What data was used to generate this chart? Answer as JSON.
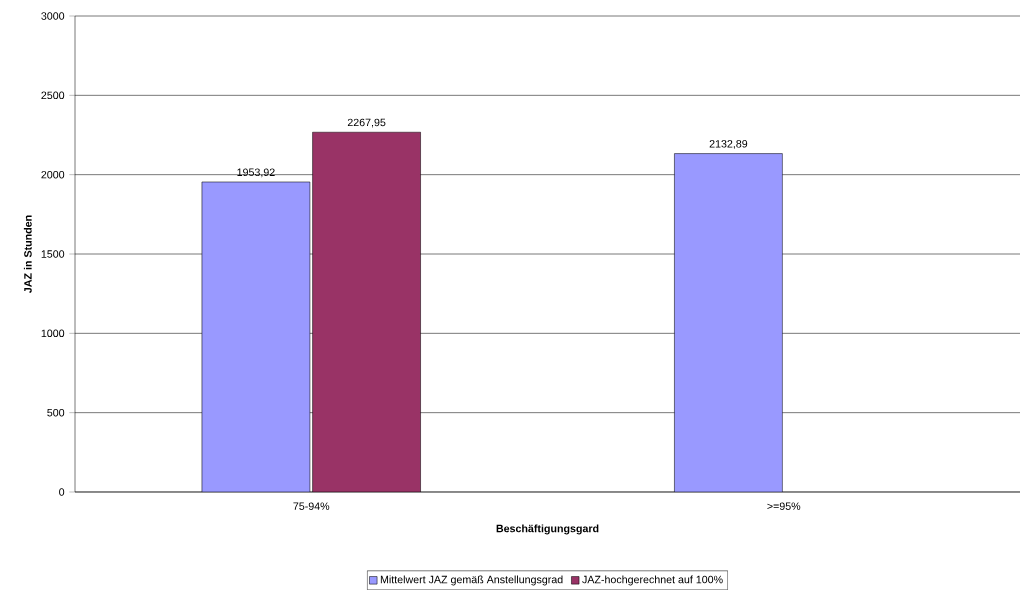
{
  "chart_data": {
    "type": "bar",
    "xlabel": "Beschäftigungsgard",
    "ylabel": "JAZ in Stunden",
    "categories": [
      "75-94%",
      ">=95%"
    ],
    "series": [
      {
        "name": "Mittelwert JAZ gemäß Anstellungsgrad",
        "color": "#9999ff",
        "values": [
          1953.92,
          2132.89
        ],
        "value_labels": [
          "1953,92",
          "2132,89"
        ]
      },
      {
        "name": "JAZ-hochgerechnet auf 100%",
        "color": "#993366",
        "values": [
          2267.95,
          null
        ],
        "value_labels": [
          "2267,95",
          null
        ]
      }
    ],
    "ylim": [
      0,
      3000
    ],
    "yticks": [
      0,
      500,
      1000,
      1500,
      2000,
      2500,
      3000
    ],
    "grid": "y",
    "legend": "bottom"
  }
}
